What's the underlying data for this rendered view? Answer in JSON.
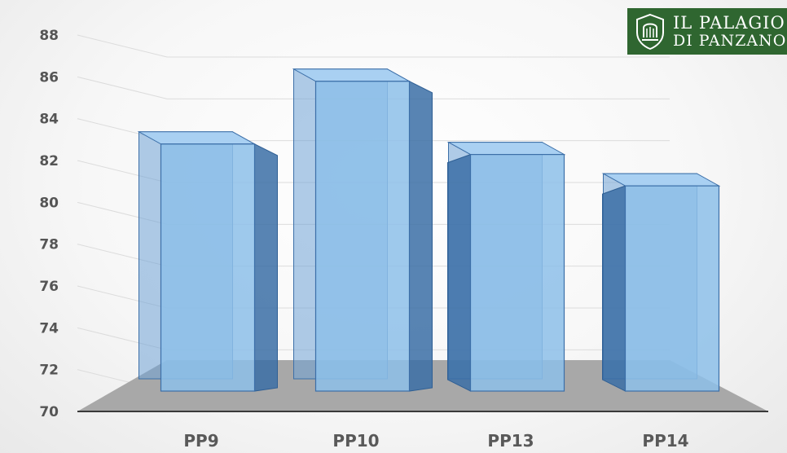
{
  "chart_data": {
    "type": "bar",
    "style": "3d-column",
    "categories": [
      "PP9",
      "PP10",
      "PP13",
      "PP14"
    ],
    "values": [
      83.1,
      86.1,
      82.6,
      81.1
    ],
    "ylim": [
      70,
      88
    ],
    "yticks": [
      70,
      72,
      74,
      76,
      78,
      80,
      82,
      84,
      86,
      88
    ],
    "grid": true,
    "bar_color": "#8dbfe9",
    "floor_color": "#a8a8a8",
    "title": "",
    "xlabel": "",
    "ylabel": ""
  },
  "logo": {
    "line1": "IL PALAGIO",
    "line2": "DI PANZANO",
    "color": "#2f6630"
  }
}
